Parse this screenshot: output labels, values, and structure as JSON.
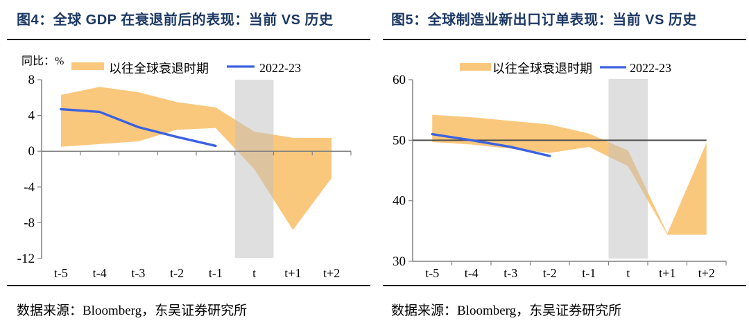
{
  "colors": {
    "title_navy": "#1C3864",
    "band_orange": "#FAC87D",
    "line_blue": "#3C61E0",
    "highlight_gray": "#BFBFBF",
    "axis_gray": "#808080",
    "ref_line_gray": "#4D4D4D",
    "text_black": "#000000"
  },
  "charts": [
    {
      "title": "图4：全球 GDP 在衰退前后的表现：当前 VS 历史",
      "unit_label": "同比：%",
      "source": "数据来源：Bloomberg，东吴证券研究所",
      "chart_data": {
        "type": "area",
        "title": "全球GDP在衰退前后的表现：当前 VS 历史",
        "ylabel": "同比：%",
        "categories": [
          "t-5",
          "t-4",
          "t-3",
          "t-2",
          "t-1",
          "t",
          "t+1",
          "t+2"
        ],
        "ylim": [
          -12,
          8
        ],
        "yticks": [
          8,
          4,
          0,
          -4,
          -8,
          -12
        ],
        "category_axis_at": 0,
        "highlight_category": "t",
        "legend_position": "top",
        "grid": false,
        "series": [
          {
            "name": "以往全球衰退时期",
            "kind": "band",
            "upper": [
              6.3,
              7.2,
              6.6,
              5.5,
              4.9,
              2.2,
              1.5,
              1.5
            ],
            "lower": [
              0.5,
              0.8,
              1.1,
              2.4,
              2.6,
              -2.0,
              -8.8,
              -3.0
            ]
          },
          {
            "name": "2022-23",
            "kind": "line",
            "values": [
              4.7,
              4.4,
              2.7,
              1.6,
              0.6,
              null,
              null,
              null
            ]
          }
        ]
      }
    },
    {
      "title": "图5：全球制造业新出口订单表现：当前 VS 历史",
      "unit_label": "",
      "source": "数据来源：Bloomberg，东吴证券研究所",
      "chart_data": {
        "type": "area",
        "title": "全球制造业新出口订单表现：当前 VS 历史",
        "ylabel": "",
        "categories": [
          "t-5",
          "t-4",
          "t-3",
          "t-2",
          "t-1",
          "t",
          "t+1",
          "t+2"
        ],
        "ylim": [
          30,
          60
        ],
        "yticks": [
          60,
          50,
          40,
          30
        ],
        "category_axis_at": 30,
        "ref_line_at": 50,
        "highlight_category": "t",
        "legend_position": "top",
        "grid": false,
        "series": [
          {
            "name": "以往全球衰退时期",
            "kind": "band",
            "upper": [
              54.2,
              53.8,
              53.2,
              52.6,
              51.1,
              48.3,
              34.6,
              49.6
            ],
            "lower": [
              49.7,
              49.3,
              48.6,
              47.9,
              48.9,
              45.7,
              34.4,
              34.4
            ]
          },
          {
            "name": "2022-23",
            "kind": "line",
            "values": [
              51.0,
              50.0,
              48.9,
              47.4,
              null,
              null,
              null,
              null
            ]
          }
        ]
      }
    }
  ]
}
